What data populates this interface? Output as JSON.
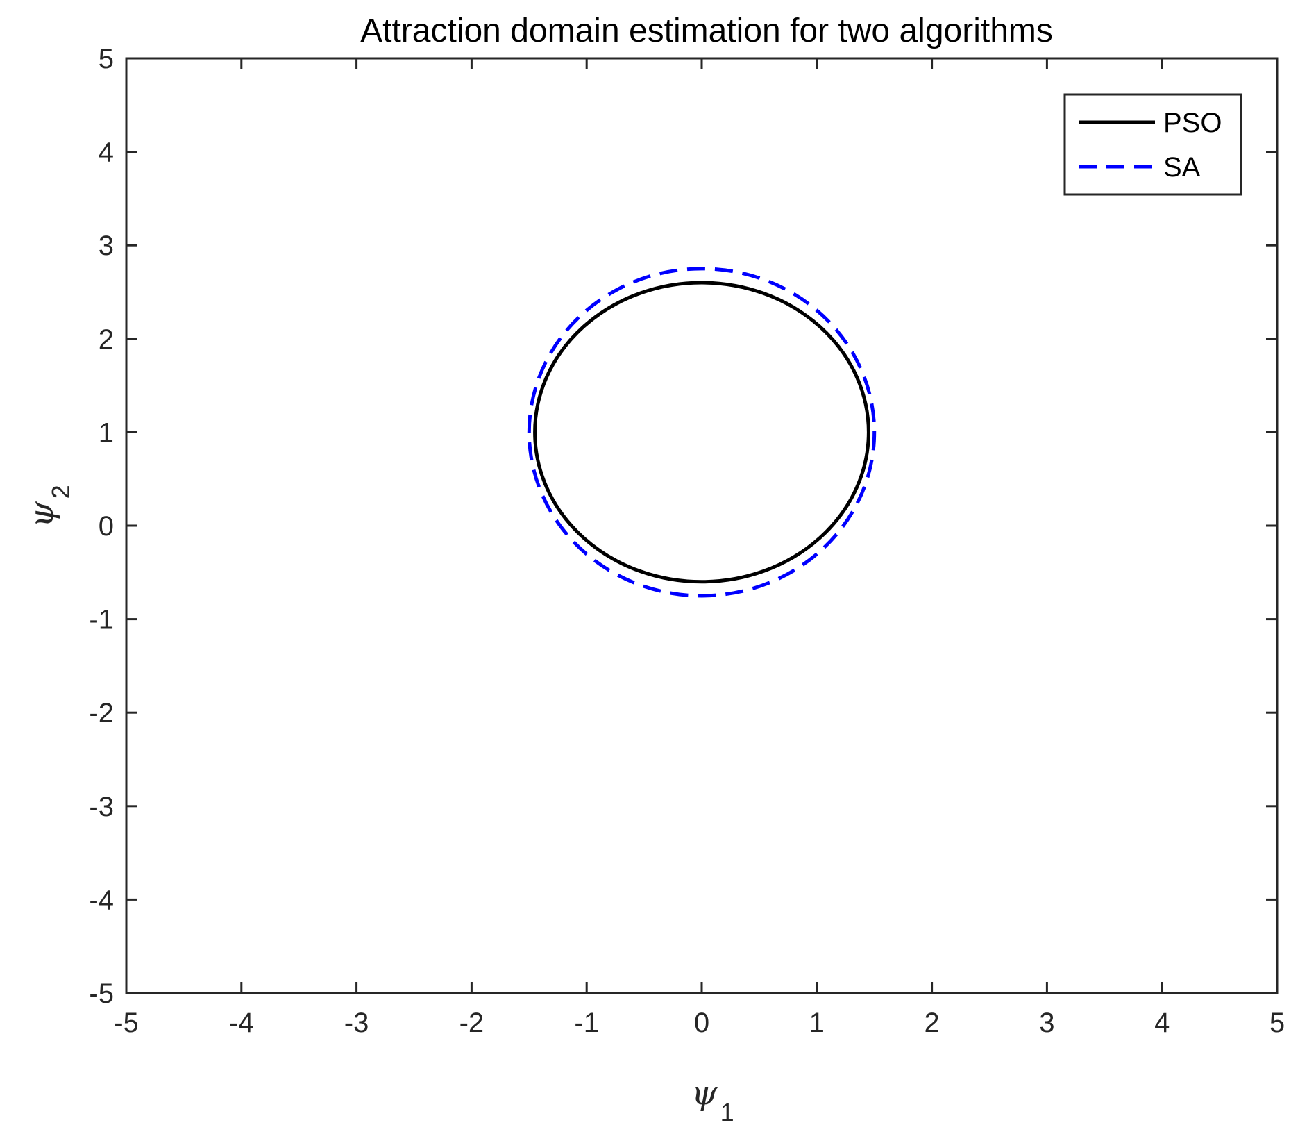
{
  "chart_data": {
    "type": "line",
    "title": "Attraction domain estimation for two algorithms",
    "xlabel": {
      "symbol": "ψ",
      "subscript": "1"
    },
    "ylabel": {
      "symbol": "ψ",
      "subscript": "2"
    },
    "xlim": [
      -5,
      5
    ],
    "ylim": [
      -5,
      5
    ],
    "xticks": [
      "-5",
      "-4",
      "-3",
      "-2",
      "-1",
      "0",
      "1",
      "2",
      "3",
      "4",
      "5"
    ],
    "yticks": [
      "-5",
      "-4",
      "-3",
      "-2",
      "-1",
      "0",
      "1",
      "2",
      "3",
      "4",
      "5"
    ],
    "grid": false,
    "legend_position": "top-right",
    "series": [
      {
        "name": "PSO",
        "color": "#000000",
        "style": "solid",
        "shape": "ellipse",
        "center": [
          0,
          1
        ],
        "radius_x": 1.45,
        "radius_y": 1.6
      },
      {
        "name": "SA",
        "color": "#0000ff",
        "style": "dashed",
        "shape": "ellipse",
        "center": [
          0,
          1
        ],
        "radius_x": 1.5,
        "radius_y": 1.75
      }
    ]
  }
}
